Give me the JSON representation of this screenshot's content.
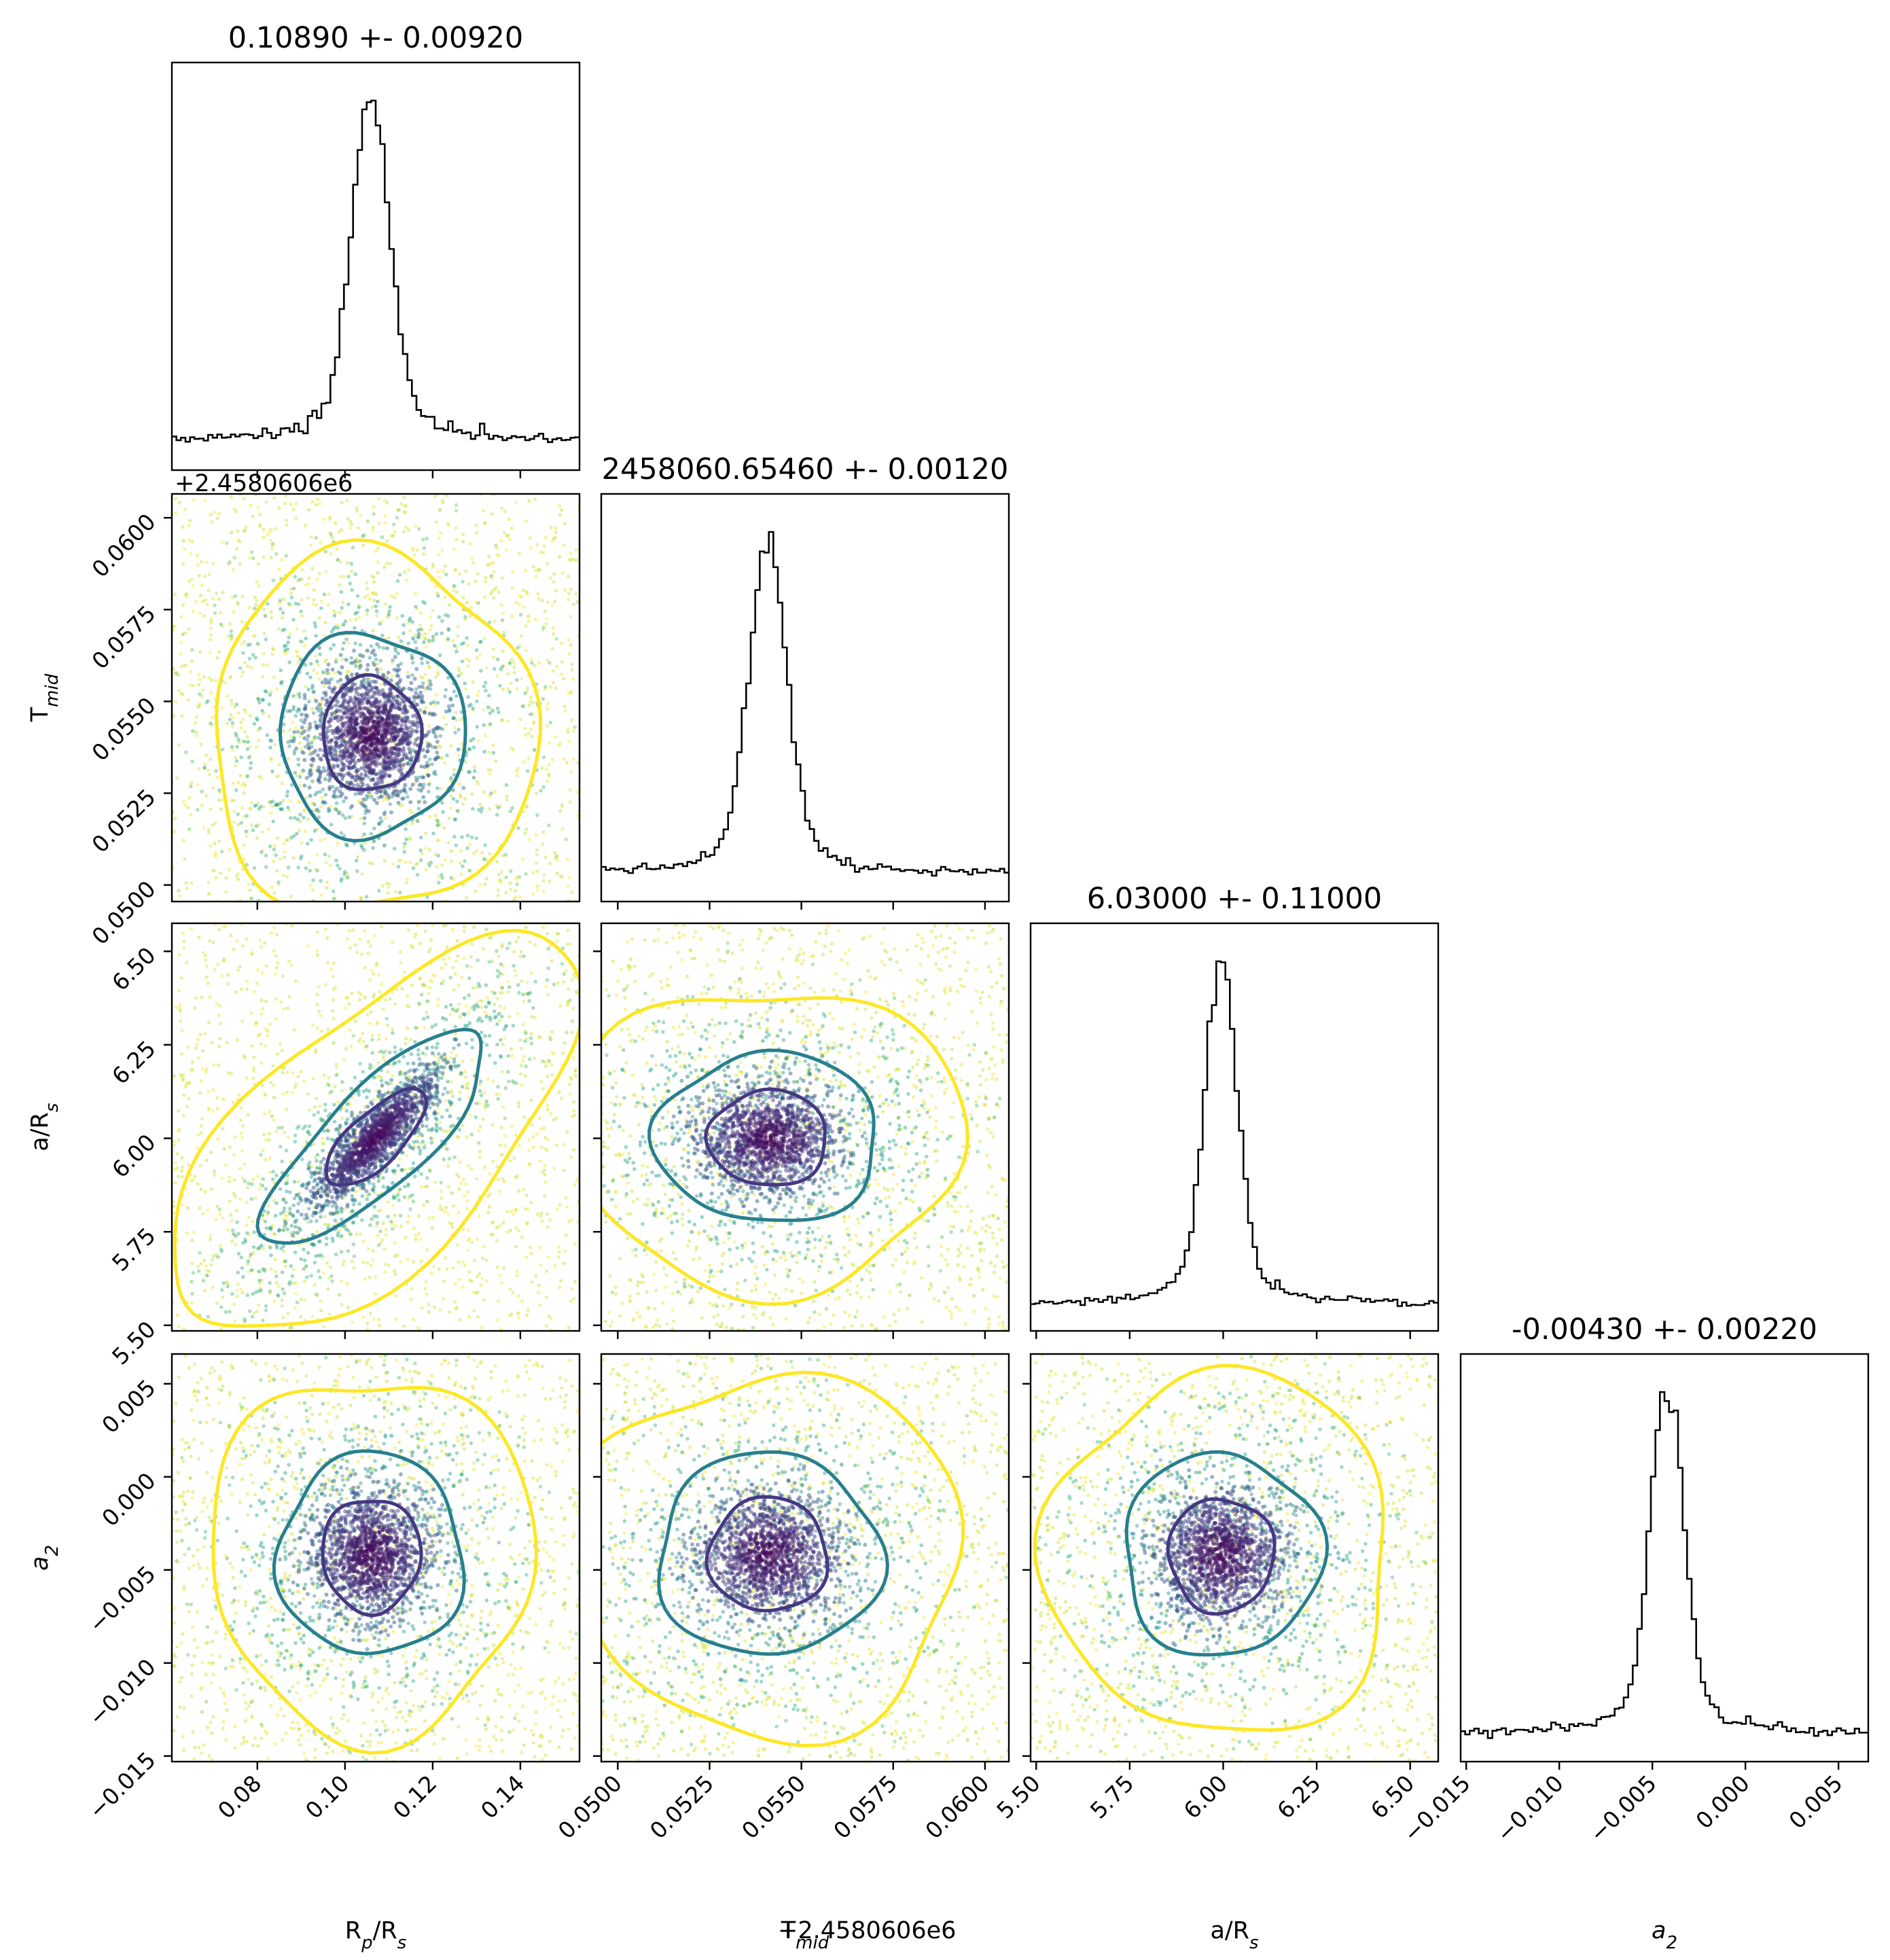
{
  "chart_data": {
    "type": "corner",
    "parameters": [
      {
        "key": "rp",
        "axis_label": "R_p/R_s",
        "axis_label_main": "R",
        "axis_label_sub": "p",
        "axis_label_rest": "/R",
        "axis_label_sub2": "s",
        "range": [
          0.0605,
          0.1535
        ],
        "ticks": [
          0.08,
          0.1,
          0.12,
          0.14
        ],
        "tick_labels": [
          "0.08",
          "0.10",
          "0.12",
          "0.14"
        ],
        "median": 0.1089,
        "sigma": 0.0092,
        "title": "0.10890 +- 0.00920"
      },
      {
        "key": "tmid",
        "axis_label": "T_mid",
        "axis_label_main": "T",
        "axis_label_sub": "mid",
        "range": [
          0.04955,
          0.06065
        ],
        "ticks": [
          0.05,
          0.0525,
          0.055,
          0.0575,
          0.06
        ],
        "tick_labels": [
          "0.0500",
          "0.0525",
          "0.0550",
          "0.0575",
          "0.0600"
        ],
        "offset_label": "+2.4580606e6",
        "median": 0.0546,
        "sigma": 0.0012,
        "title": "2458060.65460 +- 0.00120"
      },
      {
        "key": "ars",
        "axis_label": "a/R_s",
        "axis_label_main": "a/R",
        "axis_label_sub": "s",
        "range": [
          5.485,
          6.575
        ],
        "ticks": [
          5.5,
          5.75,
          6.0,
          6.25,
          6.5
        ],
        "tick_labels": [
          "5.50",
          "5.75",
          "6.00",
          "6.25",
          "6.50"
        ],
        "median": 6.03,
        "sigma": 0.11,
        "title": "6.03000 +- 0.11000"
      },
      {
        "key": "a2",
        "axis_label": "a_2",
        "axis_label_main": "a",
        "axis_label_sub": "2",
        "range": [
          -0.0153,
          0.0066
        ],
        "ticks": [
          -0.015,
          -0.01,
          -0.005,
          0.0,
          0.005
        ],
        "tick_labels": [
          "−0.015",
          "−0.010",
          "−0.005",
          "0.000",
          "0.005"
        ],
        "median": -0.0043,
        "sigma": 0.0022,
        "title": "-0.00430 +- 0.00220"
      }
    ],
    "histogram_peaks": {
      "rp": 0.106,
      "tmid": 0.0541,
      "ars": 5.995,
      "a2": -0.0042
    },
    "scatter_centers": {
      "rp_tmid": [
        0.106,
        0.0541
      ],
      "rp_ars": [
        0.107,
        6.0
      ],
      "rp_a2": [
        0.106,
        -0.0042
      ],
      "tmid_ars": [
        0.0541,
        6.0
      ],
      "tmid_a2": [
        0.0541,
        -0.0042
      ],
      "ars_a2": [
        5.995,
        -0.0042
      ]
    },
    "rp_ars_correlation": 0.85,
    "contour_levels": [
      "inner",
      "middle",
      "outer"
    ],
    "colors": {
      "inner_contour": "#453781",
      "middle_contour": "#277f8e",
      "outer_contour": "#fde725",
      "dense_points": "#440154",
      "histogram": "#000000"
    },
    "grid": false,
    "legend": "none"
  }
}
